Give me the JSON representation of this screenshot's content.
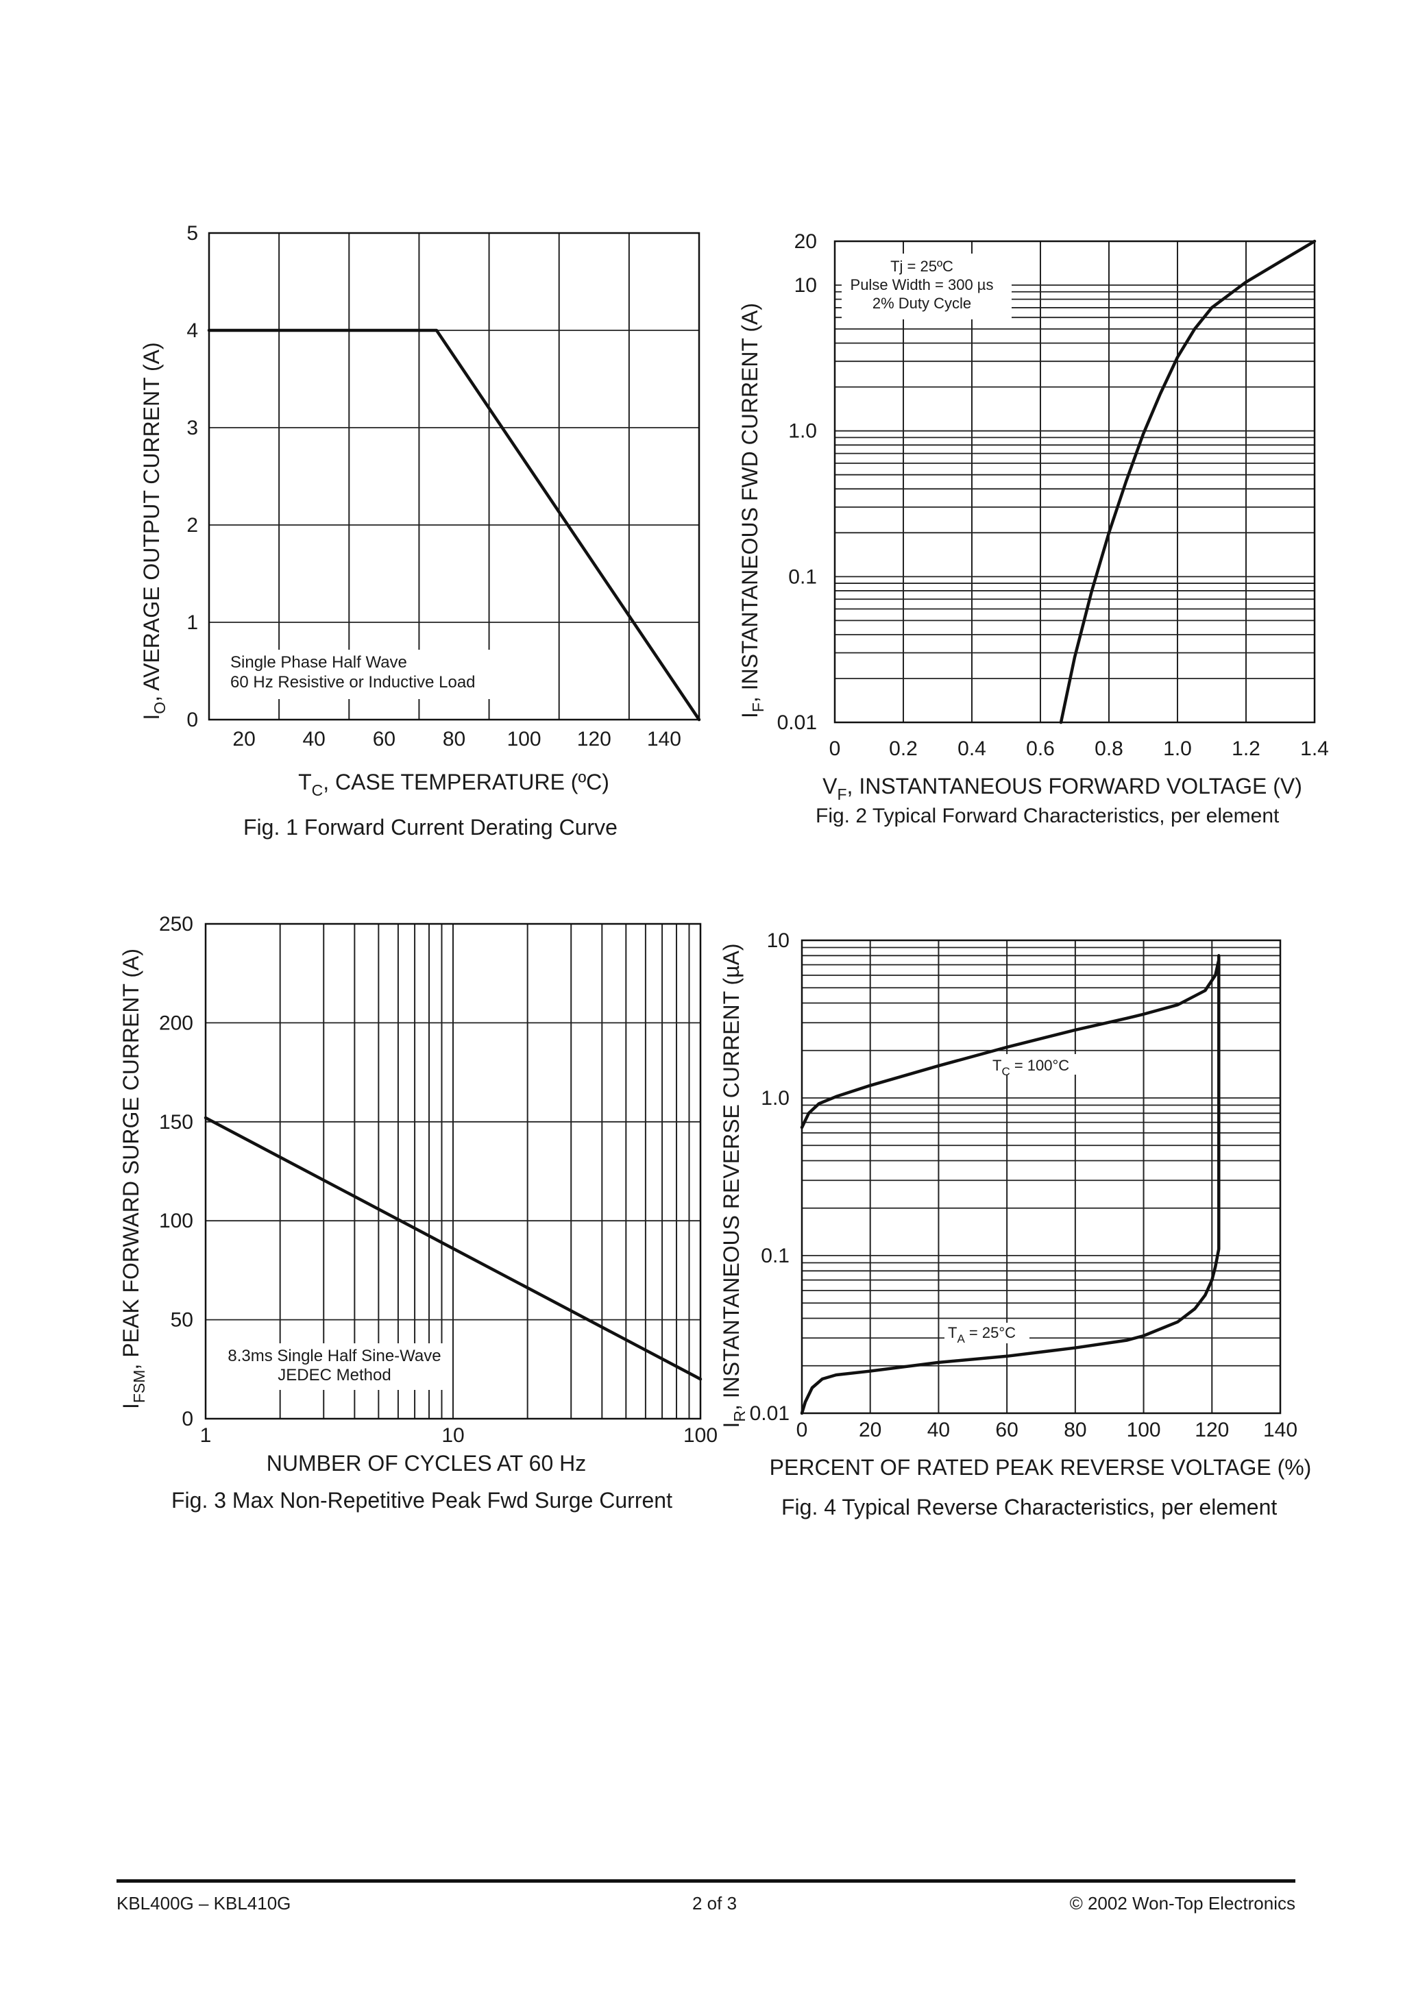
{
  "chart_data": [
    {
      "type": "line",
      "title": "Fig. 1  Forward Current Derating Curve",
      "xlabel": {
        "main": "T",
        "sub": "C",
        "rest": ", CASE TEMPERATURE (ºC)"
      },
      "ylabel": {
        "main": "I",
        "sub": "O",
        "rest": ",  AVERAGE OUTPUT CURRENT (A)"
      },
      "xlim": [
        10,
        150
      ],
      "ylim": [
        0,
        5
      ],
      "xscale": "linear",
      "yscale": "linear",
      "xticks": [
        20,
        40,
        60,
        80,
        100,
        120,
        140
      ],
      "xtick_labels": [
        "20",
        "40",
        "60",
        "80",
        "100",
        "120",
        "140"
      ],
      "yticks": [
        0,
        1,
        2,
        3,
        4,
        5
      ],
      "ytick_labels": [
        "0",
        "1",
        "2",
        "3",
        "4",
        "5"
      ],
      "grid": true,
      "series": [
        {
          "x": [
            10,
            75,
            150
          ],
          "y": [
            4,
            4,
            0
          ]
        }
      ],
      "annotations": [
        "Single Phase Half Wave",
        "60 Hz Resistive or Inductive Load"
      ]
    },
    {
      "type": "line",
      "title": "Fig. 2  Typical Forward Characteristics, per element",
      "xlabel": {
        "main": "V",
        "sub": "F",
        "rest": ", INSTANTANEOUS FORWARD VOLTAGE (V)"
      },
      "ylabel": {
        "main": "I",
        "sub": "F",
        "rest": ",  INSTANTANEOUS FWD CURRENT (A)"
      },
      "xlim": [
        0,
        1.4
      ],
      "ylim": [
        0.01,
        20
      ],
      "xscale": "linear",
      "yscale": "log",
      "xticks": [
        0,
        0.2,
        0.4,
        0.6,
        0.8,
        1.0,
        1.2,
        1.4
      ],
      "xtick_labels": [
        "0",
        "0.2",
        "0.4",
        "0.6",
        "0.8",
        "1.0",
        "1.2",
        "1.4"
      ],
      "yticks": [
        0.01,
        0.1,
        1.0,
        10,
        20
      ],
      "ytick_labels": [
        "0.01",
        "0.1",
        "1.0",
        "10",
        "20"
      ],
      "grid": true,
      "series": [
        {
          "x": [
            0.66,
            0.7,
            0.75,
            0.8,
            0.85,
            0.9,
            0.95,
            1.0,
            1.05,
            1.1,
            1.2,
            1.3,
            1.4
          ],
          "y": [
            0.01,
            0.028,
            0.08,
            0.2,
            0.45,
            0.95,
            1.8,
            3.2,
            5.0,
            7.0,
            10.5,
            14.5,
            20
          ]
        }
      ],
      "annotations": [
        "Tj = 25ºC",
        "Pulse Width = 300 µs",
        "2% Duty Cycle"
      ]
    },
    {
      "type": "line",
      "title": "Fig. 3  Max Non-Repetitive Peak Fwd Surge Current",
      "xlabel": {
        "main": "NUMBER OF CYCLES AT 60 Hz",
        "sub": "",
        "rest": ""
      },
      "ylabel": {
        "main": "I",
        "sub": "FSM",
        "rest": ",  PEAK FORWARD SURGE CURRENT (A)"
      },
      "xlim": [
        1,
        100
      ],
      "ylim": [
        0,
        250
      ],
      "xscale": "log",
      "yscale": "linear",
      "xticks": [
        1,
        10,
        100
      ],
      "xtick_labels": [
        "1",
        "10",
        "100"
      ],
      "yticks": [
        0,
        50,
        100,
        150,
        200,
        250
      ],
      "ytick_labels": [
        "0",
        "50",
        "100",
        "150",
        "200",
        "250"
      ],
      "grid": true,
      "series": [
        {
          "x": [
            1,
            100
          ],
          "y": [
            152,
            20
          ]
        }
      ],
      "annotations": [
        "8.3ms Single Half Sine-Wave",
        "JEDEC Method"
      ]
    },
    {
      "type": "line",
      "title": "Fig. 4  Typical Reverse Characteristics, per element",
      "xlabel": {
        "main": "PERCENT OF RATED  PEAK REVERSE VOLTAGE (%)",
        "sub": "",
        "rest": ""
      },
      "ylabel": {
        "main": "I",
        "sub": "R",
        "rest": ", INSTANTANEOUS REVERSE CURRENT (µA)"
      },
      "xlim": [
        0,
        140
      ],
      "ylim": [
        0.01,
        10
      ],
      "xscale": "linear",
      "yscale": "log",
      "xticks": [
        0,
        20,
        40,
        60,
        80,
        100,
        120,
        140
      ],
      "xtick_labels": [
        "0",
        "20",
        "40",
        "60",
        "80",
        "100",
        "120",
        "140"
      ],
      "yticks": [
        0.01,
        0.1,
        1.0,
        10
      ],
      "ytick_labels": [
        "0.01",
        "0.1",
        "1.0",
        "10"
      ],
      "grid": true,
      "series": [
        {
          "name": "TC = 100°C",
          "x": [
            0,
            2,
            5,
            10,
            20,
            40,
            60,
            80,
            95,
            100,
            110,
            118,
            121,
            122
          ],
          "y": [
            0.65,
            0.8,
            0.92,
            1.02,
            1.2,
            1.6,
            2.1,
            2.7,
            3.2,
            3.4,
            3.9,
            4.8,
            6.0,
            7.5
          ]
        },
        {
          "name": "TA = 25°C",
          "x": [
            0,
            1,
            3,
            6,
            10,
            20,
            40,
            60,
            80,
            95,
            100,
            110,
            115,
            118,
            120,
            121,
            122,
            122,
            122,
            122,
            122,
            122
          ],
          "y": [
            0.01,
            0.0118,
            0.0145,
            0.0165,
            0.0175,
            0.0185,
            0.021,
            0.023,
            0.026,
            0.029,
            0.031,
            0.038,
            0.046,
            0.056,
            0.07,
            0.085,
            0.11,
            0.3,
            0.8,
            2.0,
            5.0,
            8.0
          ]
        }
      ],
      "annotations": [
        {
          "main": "T",
          "sub": "C",
          "rest": " = 100°C"
        },
        {
          "main": "T",
          "sub": "A",
          "rest": " = 25°C"
        }
      ]
    }
  ],
  "footer": {
    "left": "KBL400G – KBL410G",
    "center": "2 of 3",
    "right": "© 2002 Won-Top Electronics"
  }
}
